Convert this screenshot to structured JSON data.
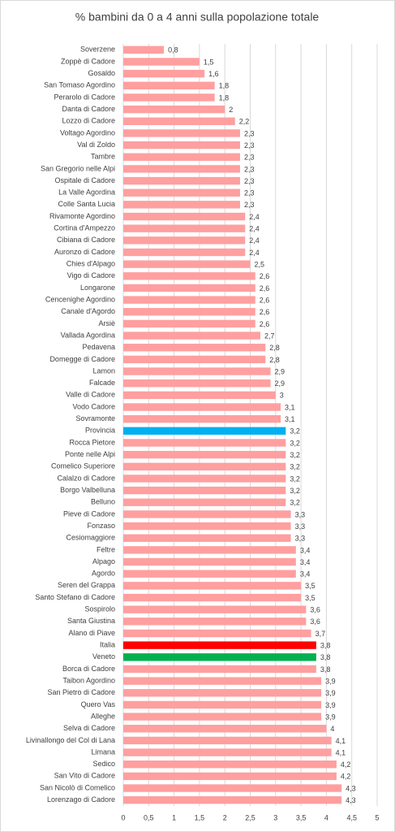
{
  "chart_data": {
    "type": "barh",
    "title": "% bambini da 0 a 4 anni sulla popolazione totale",
    "categories": [
      "Soverzene",
      "Zoppè di Cadore",
      "Gosaldo",
      "San Tomaso Agordino",
      "Perarolo di Cadore",
      "Danta di Cadore",
      "Lozzo di Cadore",
      "Voltago Agordino",
      "Val di Zoldo",
      "Tambre",
      "San Gregorio nelle Alpi",
      "Ospitale di Cadore",
      "La Valle Agordina",
      "Colle Santa Lucia",
      "Rivamonte Agordino",
      "Cortina d'Ampezzo",
      "Cibiana di Cadore",
      "Auronzo di Cadore",
      "Chies d'Alpago",
      "Vigo di Cadore",
      "Longarone",
      "Cencenighe Agordino",
      "Canale d'Agordo",
      "Arsiè",
      "Vallada Agordina",
      "Pedavena",
      "Domegge di Cadore",
      "Lamon",
      "Falcade",
      "Valle di Cadore",
      "Vodo Cadore",
      "Sovramonte",
      "Provincia",
      "Rocca Pietore",
      "Ponte nelle Alpi",
      "Comelico Superiore",
      "Calalzo di Cadore",
      "Borgo Valbelluna",
      "Belluno",
      "Pieve di Cadore",
      "Fonzaso",
      "Cesiomaggiore",
      "Feltre",
      "Alpago",
      "Agordo",
      "Seren del Grappa",
      "Santo Stefano di Cadore",
      "Sospirolo",
      "Santa Giustina",
      "Alano di Piave",
      "Italia",
      "Veneto",
      "Borca di Cadore",
      "Taibon Agordino",
      "San Pietro di Cadore",
      "Quero Vas",
      "Alleghe",
      "Selva di Cadore",
      "Livinallongo del Col di Lana",
      "Limana",
      "Sedico",
      "San Vito di Cadore",
      "San Nicolò di Comelico",
      "Lorenzago di Cadore"
    ],
    "values": [
      0.8,
      1.5,
      1.6,
      1.8,
      1.8,
      2,
      2.2,
      2.3,
      2.3,
      2.3,
      2.3,
      2.3,
      2.3,
      2.3,
      2.4,
      2.4,
      2.4,
      2.4,
      2.5,
      2.6,
      2.6,
      2.6,
      2.6,
      2.6,
      2.7,
      2.8,
      2.8,
      2.9,
      2.9,
      3,
      3.1,
      3.1,
      3.2,
      3.2,
      3.2,
      3.2,
      3.2,
      3.2,
      3.2,
      3.3,
      3.3,
      3.3,
      3.4,
      3.4,
      3.4,
      3.5,
      3.5,
      3.6,
      3.6,
      3.7,
      3.8,
      3.8,
      3.8,
      3.9,
      3.9,
      3.9,
      3.9,
      4,
      4.1,
      4.1,
      4.2,
      4.2,
      4.3,
      4.3
    ],
    "value_labels": [
      "0,8",
      "1,5",
      "1,6",
      "1,8",
      "1,8",
      "2",
      "2,2",
      "2,3",
      "2,3",
      "2,3",
      "2,3",
      "2,3",
      "2,3",
      "2,3",
      "2,4",
      "2,4",
      "2,4",
      "2,4",
      "2,5",
      "2,6",
      "2,6",
      "2,6",
      "2,6",
      "2,6",
      "2,7",
      "2,8",
      "2,8",
      "2,9",
      "2,9",
      "3",
      "3,1",
      "3,1",
      "3,2",
      "3,2",
      "3,2",
      "3,2",
      "3,2",
      "3,2",
      "3,2",
      "3,3",
      "3,3",
      "3,3",
      "3,4",
      "3,4",
      "3,4",
      "3,5",
      "3,5",
      "3,6",
      "3,6",
      "3,7",
      "3,8",
      "3,8",
      "3,8",
      "3,9",
      "3,9",
      "3,9",
      "3,9",
      "4",
      "4,1",
      "4,1",
      "4,2",
      "4,2",
      "4,3",
      "4,3"
    ],
    "color": "#ff9f9f",
    "highlight_colors": {
      "Provincia": "#00b0f0",
      "Italia": "#ff0000",
      "Veneto": "#00b050"
    },
    "xlim": [
      0,
      5
    ],
    "xticks": [
      0,
      {
        "value": 0.5,
        "label": "0,5"
      },
      1,
      {
        "value": 1.5,
        "label": "1,5"
      },
      2,
      {
        "value": 2.5,
        "label": "2,5"
      },
      3,
      {
        "value": 3.5,
        "label": "3,5"
      },
      4,
      {
        "value": 4.5,
        "label": "4,5"
      },
      5
    ],
    "grid": true
  }
}
